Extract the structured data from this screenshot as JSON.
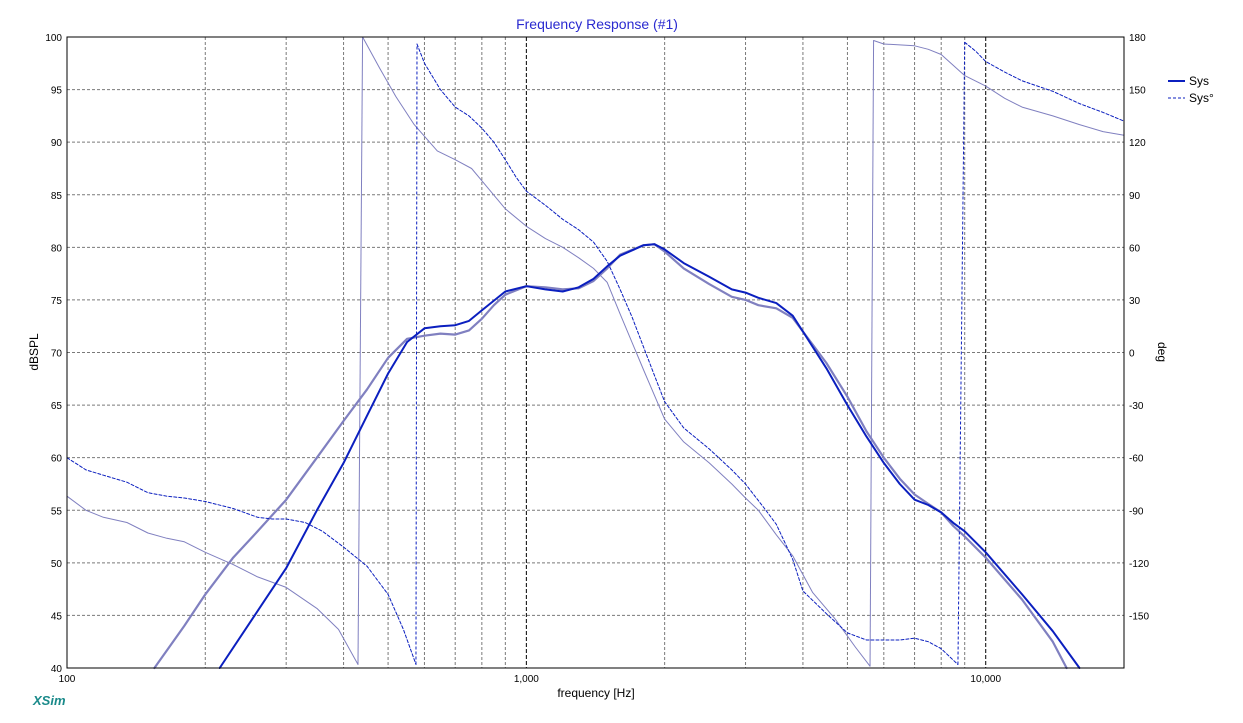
{
  "colors": {
    "sys": "#0b1fbf",
    "sys_ghost": "#8080c0",
    "grid_major": "#000000",
    "grid_minor": "#7a7a7a",
    "title": "#2a2ad0",
    "brand": "#1a8a8a"
  },
  "app": {
    "brand": "XSim"
  },
  "chart_data": {
    "type": "line",
    "title": "Frequency Response (#1)",
    "xlabel": "frequency [Hz]",
    "ylabel": "dBSPL",
    "y2label": "deg",
    "xscale": "log",
    "xlim": [
      100,
      20000
    ],
    "ylim": [
      40,
      100
    ],
    "y2lim": [
      -180,
      180
    ],
    "grid": true,
    "legend_position": "top-right",
    "legend": [
      "Sys",
      "Sys°"
    ],
    "x_tick_labels": [
      "100",
      "1,000",
      "10,000"
    ],
    "y_ticks": [
      40,
      45,
      50,
      55,
      60,
      65,
      70,
      75,
      80,
      85,
      90,
      95,
      100
    ],
    "y2_ticks": [
      -150,
      -120,
      -90,
      -60,
      -30,
      0,
      30,
      60,
      90,
      120,
      150,
      180
    ],
    "series": [
      {
        "name": "Sys",
        "axis": "left",
        "style": "solid",
        "points": [
          [
            215,
            40
          ],
          [
            270,
            46.5
          ],
          [
            300,
            49.5
          ],
          [
            350,
            55
          ],
          [
            400,
            59.5
          ],
          [
            450,
            64
          ],
          [
            500,
            68
          ],
          [
            550,
            71
          ],
          [
            600,
            72.3
          ],
          [
            650,
            72.5
          ],
          [
            700,
            72.6
          ],
          [
            750,
            73
          ],
          [
            800,
            74
          ],
          [
            900,
            75.8
          ],
          [
            1000,
            76.3
          ],
          [
            1100,
            76
          ],
          [
            1200,
            75.8
          ],
          [
            1300,
            76.2
          ],
          [
            1400,
            77
          ],
          [
            1500,
            78.2
          ],
          [
            1600,
            79.2
          ],
          [
            1800,
            80.2
          ],
          [
            1900,
            80.3
          ],
          [
            2000,
            79.8
          ],
          [
            2200,
            78.5
          ],
          [
            2500,
            77.2
          ],
          [
            2800,
            76
          ],
          [
            3000,
            75.7
          ],
          [
            3200,
            75.2
          ],
          [
            3500,
            74.7
          ],
          [
            3800,
            73.5
          ],
          [
            4000,
            72
          ],
          [
            4500,
            68.5
          ],
          [
            5000,
            65
          ],
          [
            5500,
            62
          ],
          [
            6000,
            59.5
          ],
          [
            6500,
            57.5
          ],
          [
            7000,
            56
          ],
          [
            7500,
            55.5
          ],
          [
            8000,
            54.8
          ],
          [
            8500,
            53.8
          ],
          [
            9000,
            53
          ],
          [
            10000,
            51
          ],
          [
            12000,
            47
          ],
          [
            14000,
            43.5
          ],
          [
            16000,
            40
          ]
        ]
      },
      {
        "name": "Sys",
        "axis": "left",
        "style": "ghost",
        "points": [
          [
            155,
            40
          ],
          [
            180,
            44
          ],
          [
            200,
            47
          ],
          [
            230,
            50.5
          ],
          [
            260,
            53
          ],
          [
            300,
            56
          ],
          [
            350,
            60
          ],
          [
            400,
            63.5
          ],
          [
            450,
            66.5
          ],
          [
            500,
            69.5
          ],
          [
            550,
            71.3
          ],
          [
            600,
            71.6
          ],
          [
            650,
            71.8
          ],
          [
            700,
            71.7
          ],
          [
            750,
            72.1
          ],
          [
            800,
            73.2
          ],
          [
            850,
            74.5
          ],
          [
            900,
            75.5
          ],
          [
            1000,
            76.3
          ],
          [
            1100,
            76.2
          ],
          [
            1200,
            76
          ],
          [
            1300,
            76.1
          ],
          [
            1400,
            76.8
          ],
          [
            1500,
            78
          ],
          [
            1600,
            79.3
          ],
          [
            1800,
            80.2
          ],
          [
            1900,
            80.3
          ],
          [
            2000,
            79.6
          ],
          [
            2200,
            78
          ],
          [
            2500,
            76.5
          ],
          [
            2800,
            75.3
          ],
          [
            3000,
            75
          ],
          [
            3200,
            74.5
          ],
          [
            3500,
            74.2
          ],
          [
            3800,
            73.3
          ],
          [
            4000,
            72
          ],
          [
            4500,
            69
          ],
          [
            5000,
            65.8
          ],
          [
            5500,
            62.5
          ],
          [
            6000,
            60
          ],
          [
            6500,
            58
          ],
          [
            7000,
            56.5
          ],
          [
            7500,
            55.6
          ],
          [
            8000,
            54.8
          ],
          [
            8500,
            53.5
          ],
          [
            9000,
            52.5
          ],
          [
            10000,
            50.5
          ],
          [
            12000,
            46.5
          ],
          [
            14000,
            42.5
          ],
          [
            15000,
            40
          ]
        ]
      },
      {
        "name": "Sys°",
        "axis": "right",
        "style": "dashed",
        "segments": [
          [
            [
              100,
              -60
            ],
            [
              110,
              -67
            ],
            [
              120,
              -70
            ],
            [
              135,
              -74
            ],
            [
              150,
              -80
            ],
            [
              165,
              -82
            ],
            [
              180,
              -83
            ],
            [
              200,
              -85
            ],
            [
              230,
              -89
            ],
            [
              260,
              -94
            ],
            [
              280,
              -95
            ],
            [
              300,
              -95
            ],
            [
              330,
              -97
            ],
            [
              360,
              -102
            ],
            [
              400,
              -111
            ],
            [
              450,
              -122
            ],
            [
              500,
              -138
            ],
            [
              540,
              -158
            ],
            [
              575,
              -178
            ]
          ],
          [
            [
              578,
              176
            ],
            [
              600,
              165
            ],
            [
              650,
              150
            ],
            [
              700,
              140
            ],
            [
              750,
              135
            ],
            [
              800,
              128
            ],
            [
              850,
              120
            ],
            [
              900,
              110
            ],
            [
              950,
              100
            ],
            [
              1000,
              92
            ],
            [
              1100,
              84
            ],
            [
              1200,
              76
            ],
            [
              1300,
              70
            ],
            [
              1400,
              63
            ],
            [
              1500,
              52
            ],
            [
              1600,
              36
            ],
            [
              1700,
              20
            ],
            [
              1800,
              3
            ],
            [
              1900,
              -13
            ],
            [
              2000,
              -28
            ],
            [
              2200,
              -43
            ],
            [
              2500,
              -55
            ],
            [
              2800,
              -67
            ],
            [
              3000,
              -75
            ],
            [
              3300,
              -89
            ],
            [
              3500,
              -98
            ],
            [
              3800,
              -118
            ],
            [
              4000,
              -136
            ],
            [
              4500,
              -149
            ],
            [
              5000,
              -160
            ],
            [
              5500,
              -164
            ],
            [
              6000,
              -164
            ],
            [
              6500,
              -164
            ],
            [
              7000,
              -163
            ],
            [
              7500,
              -165
            ],
            [
              8000,
              -169
            ],
            [
              8700,
              -178
            ]
          ],
          [
            [
              9000,
              177
            ],
            [
              9500,
              172
            ],
            [
              10000,
              166
            ],
            [
              11000,
              160
            ],
            [
              12000,
              155
            ],
            [
              14000,
              149
            ],
            [
              16000,
              142
            ],
            [
              18000,
              137
            ],
            [
              20000,
              132
            ]
          ]
        ]
      },
      {
        "name": "Sys°",
        "axis": "right",
        "style": "ghost",
        "segments": [
          [
            [
              100,
              -82
            ],
            [
              110,
              -90
            ],
            [
              120,
              -94
            ],
            [
              135,
              -97
            ],
            [
              150,
              -103
            ],
            [
              165,
              -106
            ],
            [
              180,
              -108
            ],
            [
              200,
              -114
            ],
            [
              230,
              -121
            ],
            [
              260,
              -128
            ],
            [
              300,
              -134
            ],
            [
              350,
              -146
            ],
            [
              390,
              -158
            ],
            [
              430,
              -178
            ]
          ],
          [
            [
              440,
              180
            ],
            [
              480,
              162
            ],
            [
              520,
              146
            ],
            [
              570,
              130
            ],
            [
              640,
              115
            ],
            [
              700,
              110
            ],
            [
              760,
              105
            ],
            [
              800,
              98
            ],
            [
              900,
              82
            ],
            [
              1000,
              72
            ],
            [
              1100,
              65
            ],
            [
              1200,
              60
            ],
            [
              1300,
              54
            ],
            [
              1400,
              48
            ],
            [
              1500,
              40
            ],
            [
              1600,
              22
            ],
            [
              1800,
              -10
            ],
            [
              2000,
              -38
            ],
            [
              2200,
              -51
            ],
            [
              2500,
              -63
            ],
            [
              2800,
              -75
            ],
            [
              3000,
              -83
            ],
            [
              3200,
              -90
            ],
            [
              3500,
              -104
            ],
            [
              3800,
              -116
            ],
            [
              4200,
              -137
            ],
            [
              4700,
              -152
            ],
            [
              5200,
              -168
            ],
            [
              5600,
              -179
            ]
          ],
          [
            [
              5700,
              178
            ],
            [
              6000,
              176
            ],
            [
              7000,
              175
            ],
            [
              7500,
              173
            ],
            [
              8000,
              170
            ],
            [
              9000,
              158
            ],
            [
              10000,
              152
            ],
            [
              11000,
              145
            ],
            [
              12000,
              140
            ],
            [
              14000,
              135
            ],
            [
              16000,
              130
            ],
            [
              18000,
              126
            ],
            [
              20000,
              124
            ]
          ]
        ]
      }
    ]
  }
}
